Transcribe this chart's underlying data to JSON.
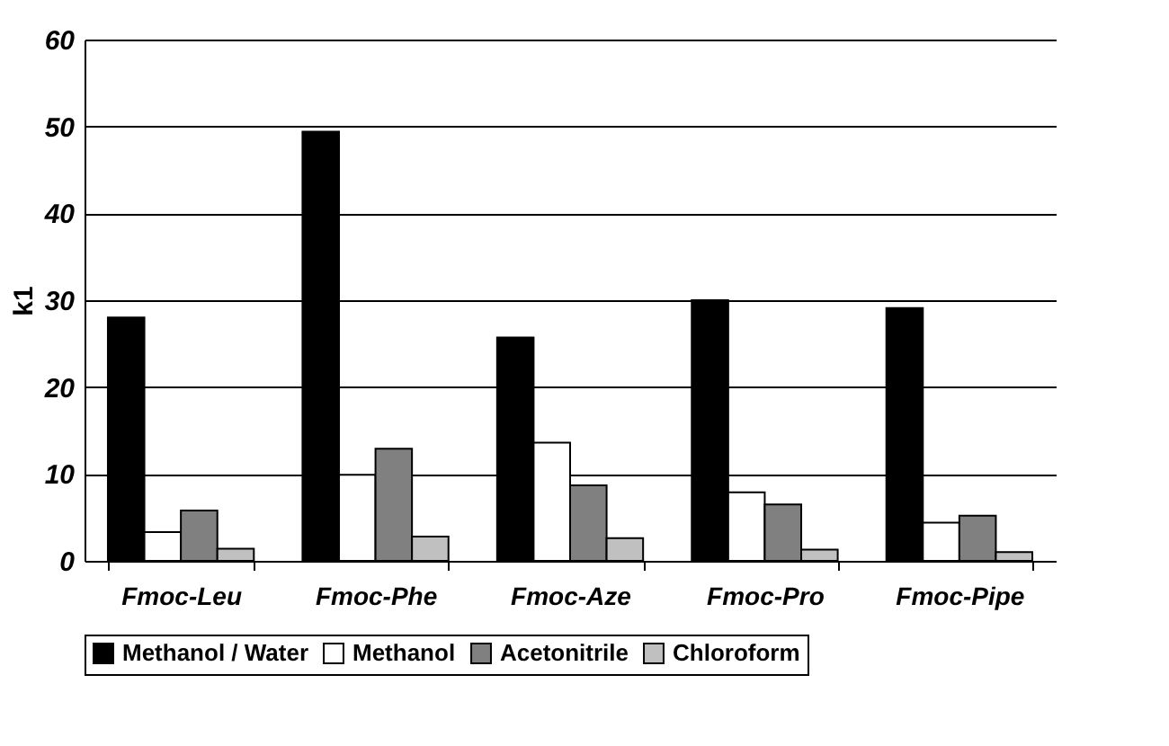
{
  "chart_data": {
    "type": "bar",
    "ylabel": "k1",
    "categories": [
      "Fmoc-Leu",
      "Fmoc-Phe",
      "Fmoc-Aze",
      "Fmoc-Pro",
      "Fmoc-Pipe"
    ],
    "series": [
      {
        "name": "Methanol / Water",
        "color": "#000000",
        "values": [
          28.0,
          49.4,
          25.7,
          30.0,
          29.1
        ]
      },
      {
        "name": "Methanol",
        "color": "#ffffff",
        "values": [
          3.3,
          9.9,
          13.6,
          7.9,
          4.4
        ]
      },
      {
        "name": "Acetonitrile",
        "color": "#808080",
        "values": [
          5.8,
          12.9,
          8.7,
          6.5,
          5.2
        ]
      },
      {
        "name": "Chloroform",
        "color": "#c0c0c0",
        "values": [
          1.4,
          2.8,
          2.6,
          1.3,
          1.0
        ]
      }
    ],
    "ylim": [
      0,
      60
    ],
    "yticks": [
      0,
      10,
      20,
      30,
      40,
      50,
      60
    ],
    "grid": "y",
    "legend": "bottom"
  }
}
